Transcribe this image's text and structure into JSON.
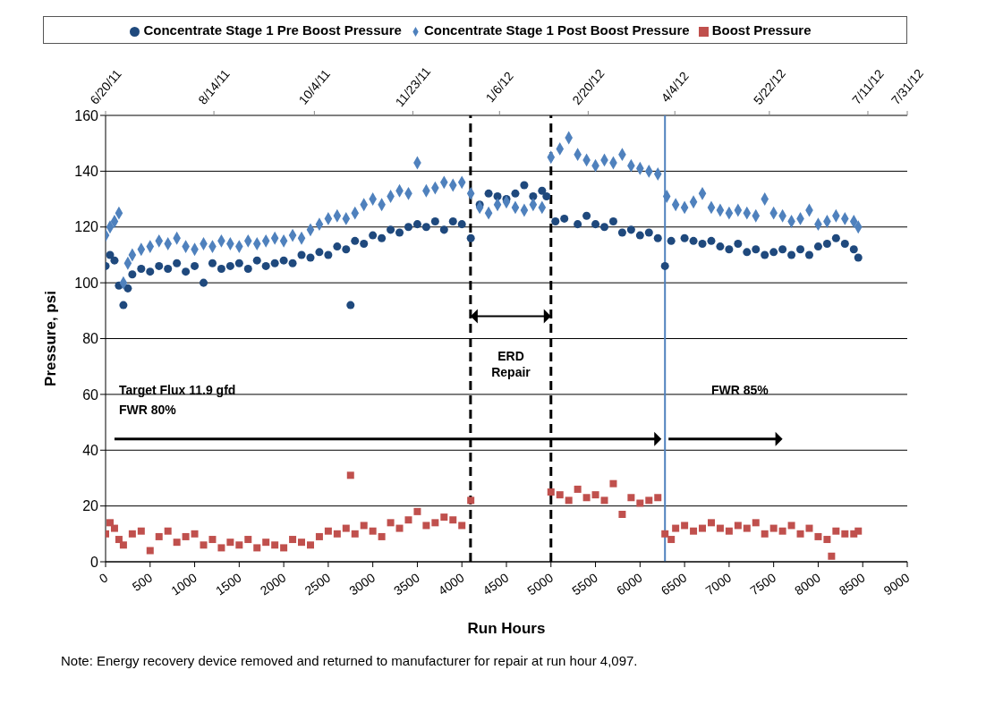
{
  "chart_data": {
    "type": "scatter",
    "xlabel": "Run Hours",
    "ylabel": "Pressure, psi",
    "xlim": [
      0,
      9000
    ],
    "xticks": [
      0,
      500,
      1000,
      1500,
      2000,
      2500,
      3000,
      3500,
      4000,
      4500,
      5000,
      5500,
      6000,
      6500,
      7000,
      7500,
      8000,
      8500,
      9000
    ],
    "x2lim": [
      "2011-06-20",
      "2012-07-31"
    ],
    "x2ticks": [
      {
        "value": "2011-06-20",
        "label": "6/20/11"
      },
      {
        "value": "2011-08-14",
        "label": "8/14/11"
      },
      {
        "value": "2011-10-04",
        "label": "10/4/11"
      },
      {
        "value": "2011-11-23",
        "label": "11/23/11"
      },
      {
        "value": "2012-01-06",
        "label": "1/6/12"
      },
      {
        "value": "2012-02-20",
        "label": "2/20/12"
      },
      {
        "value": "2012-04-04",
        "label": "4/4/12"
      },
      {
        "value": "2012-05-22",
        "label": "5/22/12"
      },
      {
        "value": "2012-07-11",
        "label": "7/11/12"
      },
      {
        "value": "2012-07-31",
        "label": "7/31/12"
      }
    ],
    "ylim": [
      0,
      160
    ],
    "yticks": [
      0,
      20,
      40,
      60,
      80,
      100,
      120,
      140,
      160
    ],
    "grid": "y",
    "legend": "top",
    "series": [
      {
        "name": "Concentrate Stage 1 Pre Boost Pressure",
        "color": "#1f497d",
        "marker": "circle",
        "x": [
          0,
          50,
          100,
          150,
          200,
          250,
          300,
          400,
          500,
          600,
          700,
          800,
          900,
          1000,
          1100,
          1200,
          1300,
          1400,
          1500,
          1600,
          1700,
          1800,
          1900,
          2000,
          2100,
          2200,
          2300,
          2400,
          2500,
          2600,
          2700,
          2750,
          2800,
          2900,
          3000,
          3100,
          3200,
          3300,
          3400,
          3500,
          3600,
          3700,
          3800,
          3900,
          4000,
          4100,
          4200,
          4300,
          4400,
          4500,
          4600,
          4700,
          4800,
          4900,
          4950,
          5050,
          5150,
          5300,
          5400,
          5500,
          5600,
          5700,
          5800,
          5900,
          6000,
          6100,
          6200,
          6280,
          6350,
          6500,
          6600,
          6700,
          6800,
          6900,
          7000,
          7100,
          7200,
          7300,
          7400,
          7500,
          7600,
          7700,
          7800,
          7900,
          8000,
          8100,
          8200,
          8300,
          8400,
          8450
        ],
        "values": [
          106,
          110,
          108,
          99,
          92,
          98,
          103,
          105,
          104,
          106,
          105,
          107,
          104,
          106,
          100,
          107,
          105,
          106,
          107,
          105,
          108,
          106,
          107,
          108,
          107,
          110,
          109,
          111,
          110,
          113,
          112,
          92,
          115,
          114,
          117,
          116,
          119,
          118,
          120,
          121,
          120,
          122,
          119,
          122,
          121,
          116,
          128,
          132,
          131,
          130,
          132,
          135,
          131,
          133,
          131,
          122,
          123,
          121,
          124,
          121,
          120,
          122,
          118,
          119,
          117,
          118,
          116,
          106,
          115,
          116,
          115,
          114,
          115,
          113,
          112,
          114,
          111,
          112,
          110,
          111,
          112,
          110,
          112,
          110,
          113,
          114,
          116,
          114,
          112,
          109
        ]
      },
      {
        "name": "Concentrate Stage 1 Post Boost Pressure",
        "color": "#4f81bd",
        "marker": "diamond",
        "x": [
          0,
          50,
          100,
          150,
          200,
          250,
          300,
          400,
          500,
          600,
          700,
          800,
          900,
          1000,
          1100,
          1200,
          1300,
          1400,
          1500,
          1600,
          1700,
          1800,
          1900,
          2000,
          2100,
          2200,
          2300,
          2400,
          2500,
          2600,
          2700,
          2800,
          2900,
          3000,
          3100,
          3200,
          3300,
          3400,
          3500,
          3600,
          3700,
          3800,
          3900,
          4000,
          4100,
          4200,
          4300,
          4400,
          4500,
          4600,
          4700,
          4800,
          4900,
          5000,
          5100,
          5200,
          5300,
          5400,
          5500,
          5600,
          5700,
          5800,
          5900,
          6000,
          6100,
          6200,
          6300,
          6400,
          6500,
          6600,
          6700,
          6800,
          6900,
          7000,
          7100,
          7200,
          7300,
          7400,
          7500,
          7600,
          7700,
          7800,
          7900,
          8000,
          8100,
          8200,
          8300,
          8400,
          8450
        ],
        "values": [
          117,
          120,
          122,
          125,
          100,
          107,
          110,
          112,
          113,
          115,
          114,
          116,
          113,
          112,
          114,
          113,
          115,
          114,
          113,
          115,
          114,
          115,
          116,
          115,
          117,
          116,
          119,
          121,
          123,
          124,
          123,
          125,
          128,
          130,
          128,
          131,
          133,
          132,
          143,
          133,
          134,
          136,
          135,
          136,
          132,
          127,
          125,
          128,
          129,
          127,
          126,
          128,
          127,
          145,
          148,
          152,
          146,
          144,
          142,
          144,
          143,
          146,
          142,
          141,
          140,
          139,
          131,
          128,
          127,
          129,
          132,
          127,
          126,
          125,
          126,
          125,
          124,
          130,
          125,
          124,
          122,
          123,
          126,
          121,
          122,
          124,
          123,
          122,
          120
        ]
      },
      {
        "name": "Boost Pressure",
        "color": "#c0504d",
        "marker": "square",
        "x": [
          0,
          50,
          100,
          150,
          200,
          300,
          400,
          500,
          600,
          700,
          800,
          900,
          1000,
          1100,
          1200,
          1300,
          1400,
          1500,
          1600,
          1700,
          1800,
          1900,
          2000,
          2100,
          2200,
          2300,
          2400,
          2500,
          2600,
          2700,
          2750,
          2800,
          2900,
          3000,
          3100,
          3200,
          3300,
          3400,
          3500,
          3600,
          3700,
          3800,
          3900,
          4000,
          4100,
          5000,
          5100,
          5200,
          5300,
          5400,
          5500,
          5600,
          5700,
          5800,
          5900,
          6000,
          6100,
          6200,
          6280,
          6350,
          6400,
          6500,
          6600,
          6700,
          6800,
          6900,
          7000,
          7100,
          7200,
          7300,
          7400,
          7500,
          7600,
          7700,
          7800,
          7900,
          8000,
          8100,
          8150,
          8200,
          8300,
          8400,
          8450
        ],
        "values": [
          10,
          14,
          12,
          8,
          6,
          10,
          11,
          4,
          9,
          11,
          7,
          9,
          10,
          6,
          8,
          5,
          7,
          6,
          8,
          5,
          7,
          6,
          5,
          8,
          7,
          6,
          9,
          11,
          10,
          12,
          31,
          10,
          13,
          11,
          9,
          14,
          12,
          15,
          18,
          13,
          14,
          16,
          15,
          13,
          22,
          25,
          24,
          22,
          26,
          23,
          24,
          22,
          28,
          17,
          23,
          21,
          22,
          23,
          10,
          8,
          12,
          13,
          11,
          12,
          14,
          12,
          11,
          13,
          12,
          14,
          10,
          12,
          11,
          13,
          10,
          12,
          9,
          8,
          2,
          11,
          10,
          10,
          11
        ]
      }
    ],
    "ref_lines": [
      {
        "axis": "x",
        "value": 4097,
        "color": "#000000",
        "line_style": "dashed"
      },
      {
        "axis": "x",
        "value": 5000,
        "color": "#000000",
        "line_style": "dashed"
      },
      {
        "axis": "x",
        "value": 6280,
        "color": "#4f81bd",
        "line_style": "solid"
      }
    ],
    "annotations": [
      "ERD Repair",
      "Target Flux 11.9 gfd",
      "FWR 80%",
      "FWR 85%",
      "Note: Energy recovery device removed and returned to manufacturer for repair at run hour 4,097."
    ]
  }
}
